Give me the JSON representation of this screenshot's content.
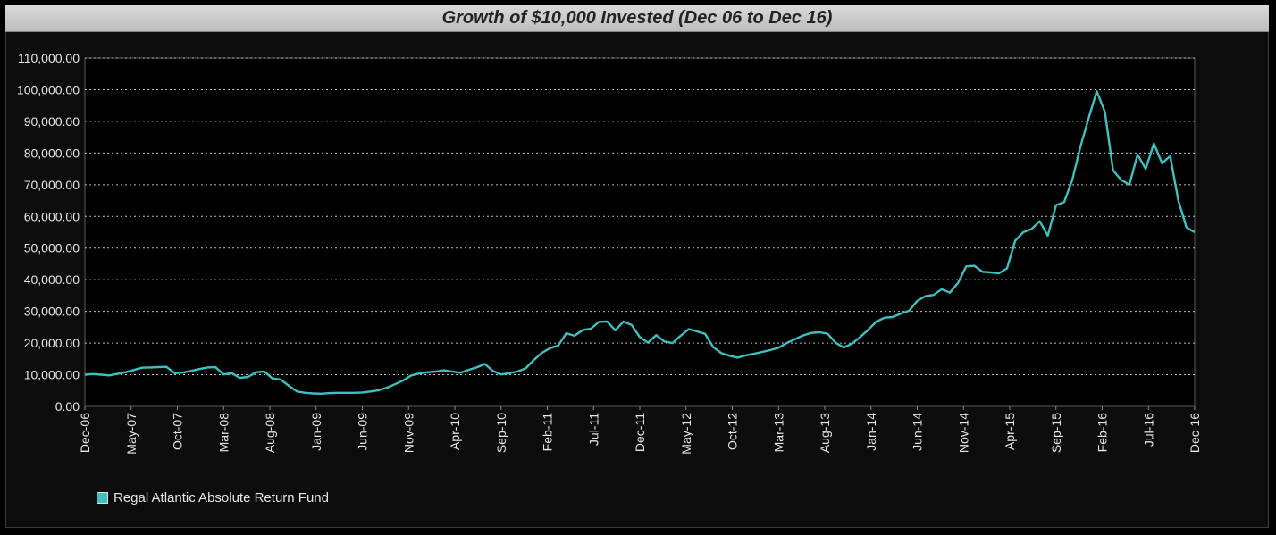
{
  "chart_data": {
    "type": "line",
    "title": "Growth of $10,000 Invested (Dec 06 to Dec 16)",
    "xlabel": "",
    "ylabel": "",
    "ylim": [
      0,
      110000
    ],
    "y_ticks": [
      0,
      10000,
      20000,
      30000,
      40000,
      50000,
      60000,
      70000,
      80000,
      90000,
      100000,
      110000
    ],
    "y_tick_labels": [
      "0.00",
      "10,000.00",
      "20,000.00",
      "30,000.00",
      "40,000.00",
      "50,000.00",
      "60,000.00",
      "70,000.00",
      "80,000.00",
      "90,000.00",
      "100,000.00",
      "110,000.00"
    ],
    "x_tick_labels": [
      "Dec-06",
      "May-07",
      "Oct-07",
      "Mar-08",
      "Aug-08",
      "Jan-09",
      "Jun-09",
      "Nov-09",
      "Apr-10",
      "Sep-10",
      "Feb-11",
      "Jul-11",
      "Dec-11",
      "May-12",
      "Oct-12",
      "Mar-13",
      "Aug-13",
      "Jan-14",
      "Jun-14",
      "Nov-14",
      "Apr-15",
      "Sep-15",
      "Feb-16",
      "Jul-16",
      "Dec-16"
    ],
    "grid": true,
    "legend_position": "bottom-left",
    "series": [
      {
        "name": "Regal Atlantic Absolute Return Fund",
        "color": "#3cc0c0",
        "values": [
          10000,
          10200,
          10000,
          9800,
          10300,
          10800,
          11500,
          12200,
          12300,
          12400,
          12500,
          10500,
          10700,
          11200,
          11800,
          12300,
          12400,
          10100,
          10500,
          9000,
          9300,
          10800,
          11000,
          8800,
          8500,
          6500,
          4700,
          4300,
          4100,
          4000,
          4200,
          4300,
          4300,
          4300,
          4400,
          4700,
          5100,
          5900,
          7000,
          8200,
          9800,
          10400,
          10800,
          11000,
          11400,
          11000,
          10600,
          11500,
          12300,
          13400,
          11200,
          10100,
          10500,
          11000,
          12000,
          14600,
          16900,
          18400,
          19200,
          23100,
          22300,
          24100,
          24500,
          26700,
          26800,
          24000,
          26800,
          25700,
          21900,
          20100,
          22500,
          20500,
          20000,
          22300,
          24400,
          23700,
          22900,
          18700,
          16800,
          16000,
          15400,
          16100,
          16600,
          17200,
          17800,
          18500,
          20000,
          21200,
          22400,
          23200,
          23400,
          23000,
          20100,
          18600,
          19800,
          21900,
          24200,
          26800,
          28000,
          28200,
          29300,
          30200,
          33300,
          34800,
          35200,
          37000,
          35900,
          39000,
          44200,
          44400,
          42500,
          42300,
          42000,
          43600,
          52300,
          55000,
          56000,
          58500,
          53900,
          63500,
          64500,
          71500,
          82000,
          91000,
          99500,
          93000,
          74500,
          71500,
          70000,
          79500,
          75000,
          83000,
          76800,
          79000,
          65000,
          56500,
          55000
        ]
      }
    ]
  }
}
